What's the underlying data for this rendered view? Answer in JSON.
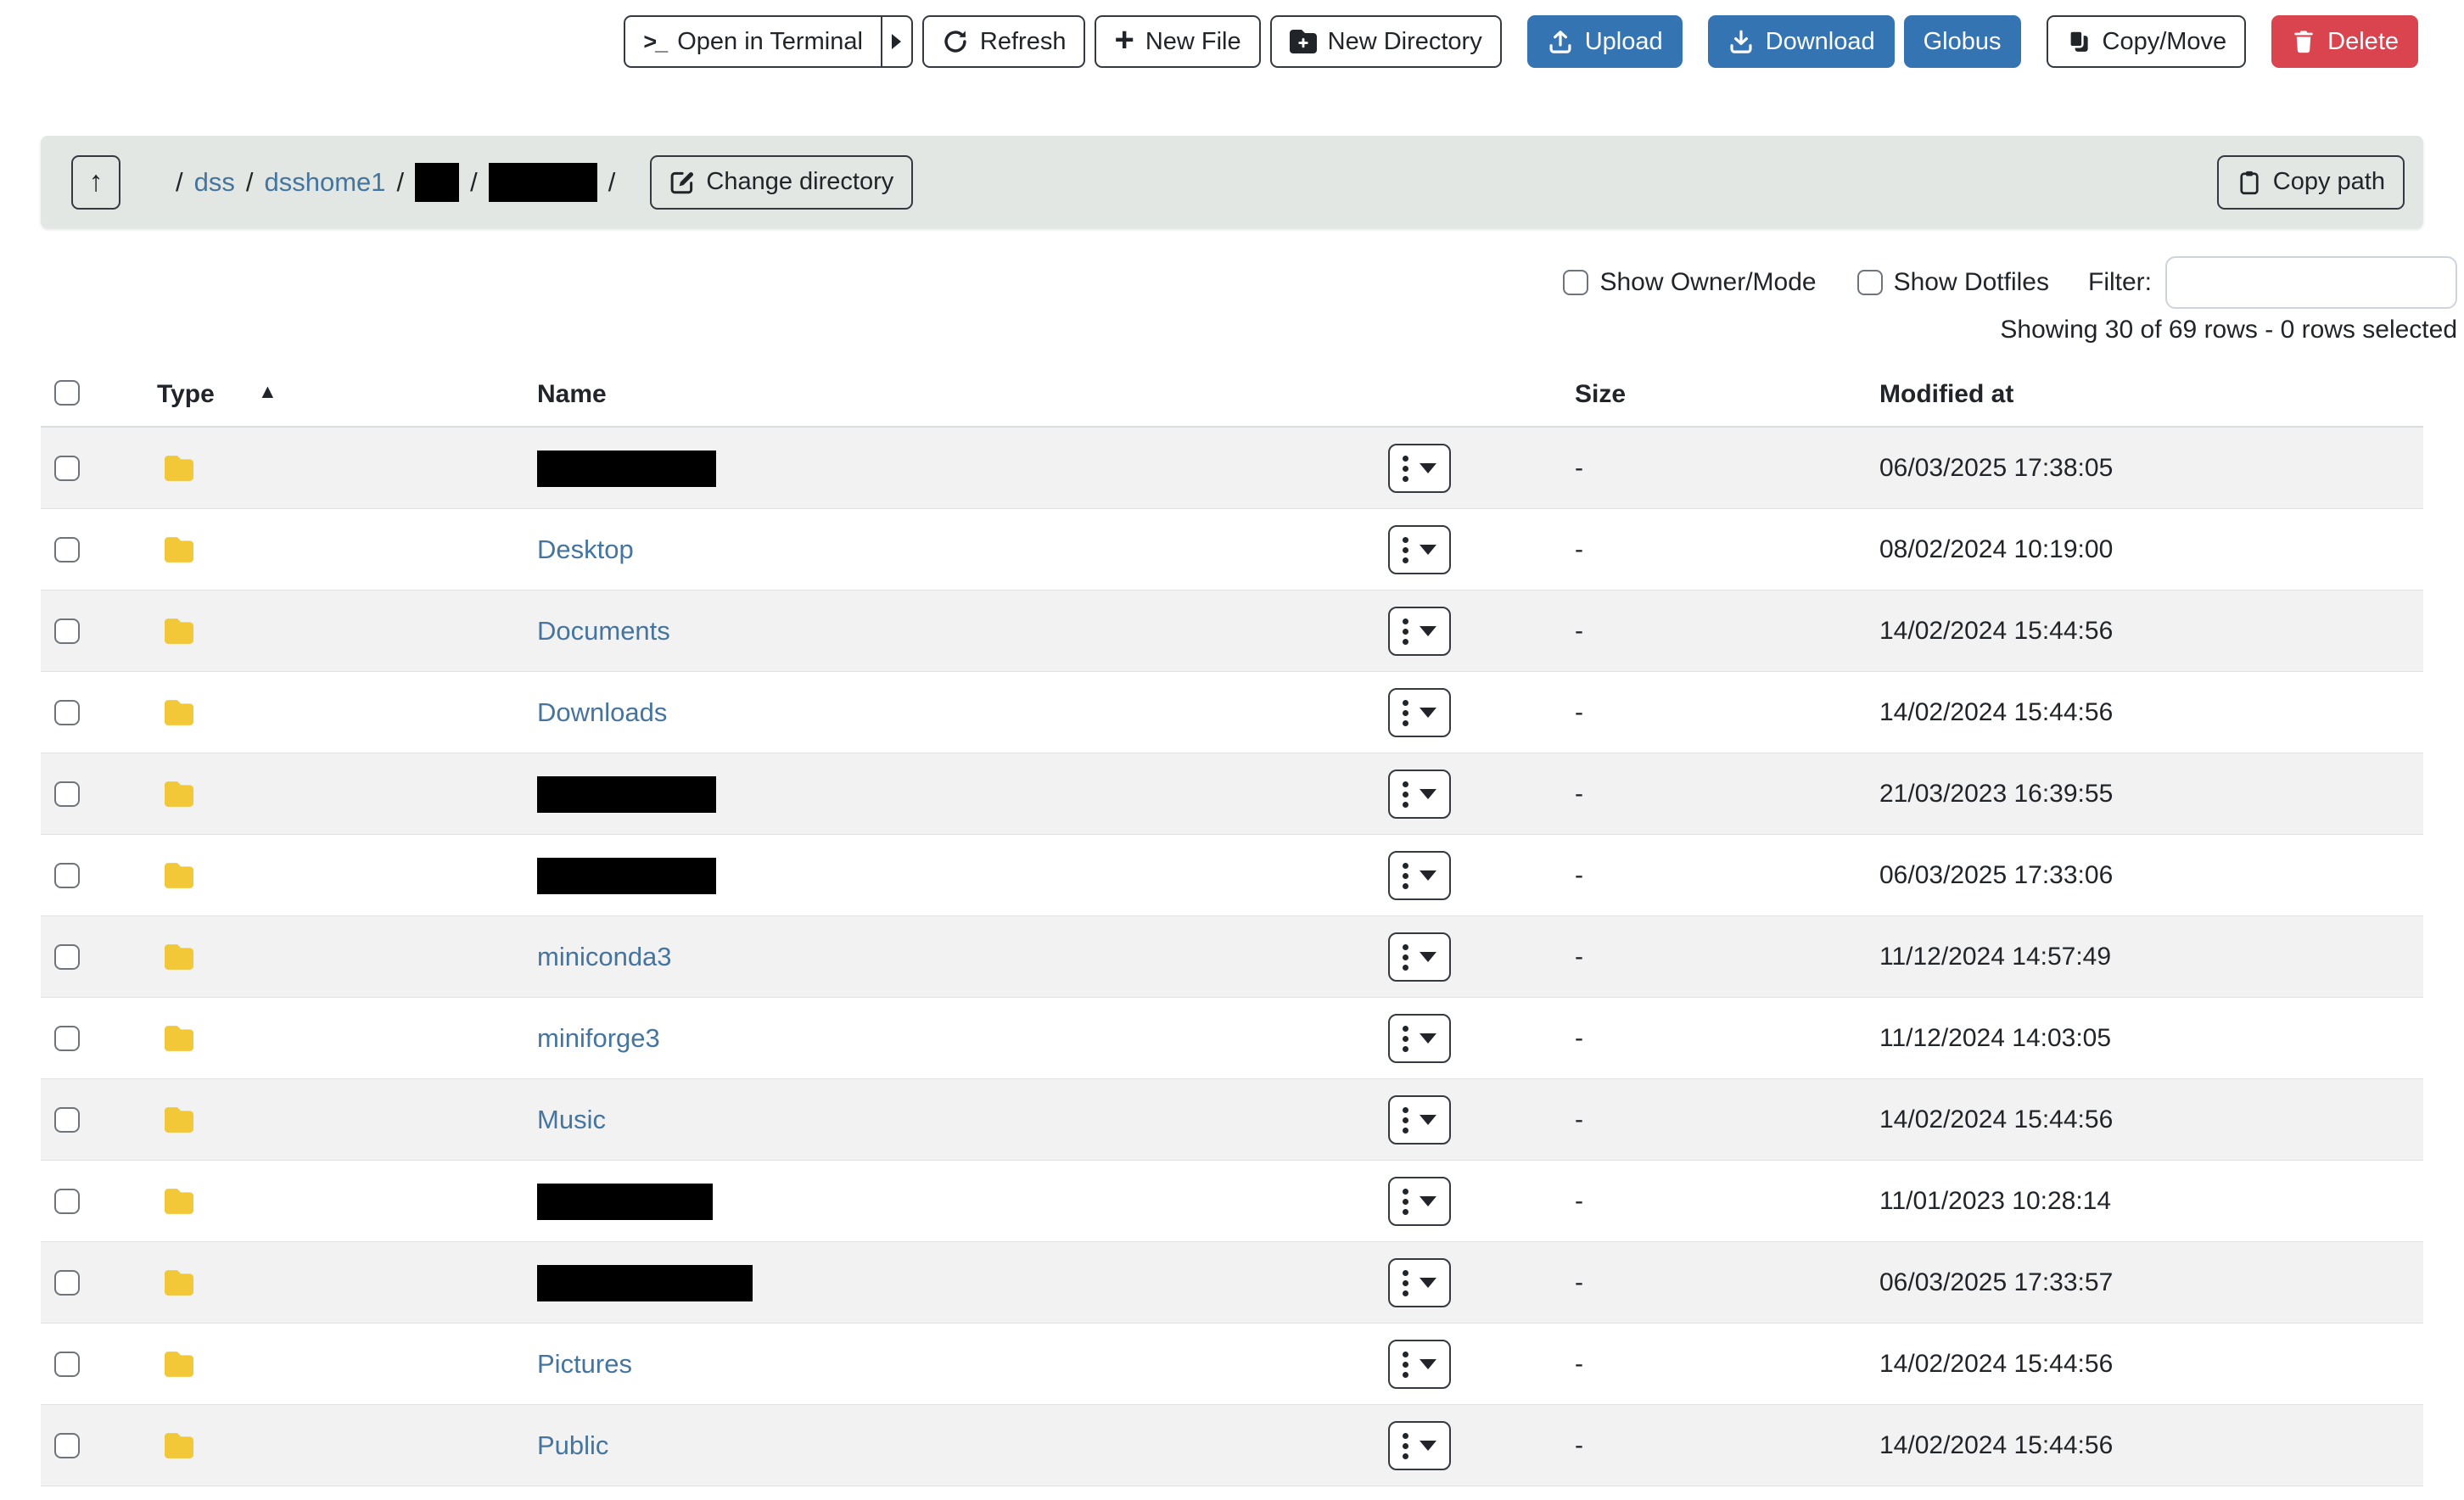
{
  "toolbar": {
    "open_in_terminal": "Open in Terminal",
    "refresh": "Refresh",
    "new_file": "New File",
    "new_directory": "New Directory",
    "upload": "Upload",
    "download": "Download",
    "globus": "Globus",
    "copy_move": "Copy/Move",
    "delete": "Delete"
  },
  "breadcrumb_bar": {
    "up_icon": "↑",
    "segments": [
      {
        "type": "link",
        "label": "dss"
      },
      {
        "type": "link",
        "label": "dsshome1"
      },
      {
        "type": "redacted",
        "width": 52
      },
      {
        "type": "redacted",
        "width": 128
      }
    ],
    "separator": "/",
    "change_directory": "Change directory",
    "copy_path": "Copy path"
  },
  "filters": {
    "show_owner_mode": "Show Owner/Mode",
    "show_dotfiles": "Show Dotfiles",
    "filter_label": "Filter:",
    "filter_value": ""
  },
  "status": {
    "showing": "Showing 30 of 69 rows - 0 rows selected"
  },
  "table": {
    "headers": {
      "type": "Type",
      "name": "Name",
      "size": "Size",
      "modified": "Modified at"
    },
    "sort_icon": "▲",
    "rows": [
      {
        "redacted": true,
        "redact_width": 211,
        "size": "-",
        "modified": "06/03/2025 17:38:05"
      },
      {
        "name": "Desktop",
        "size": "-",
        "modified": "08/02/2024 10:19:00"
      },
      {
        "name": "Documents",
        "size": "-",
        "modified": "14/02/2024 15:44:56"
      },
      {
        "name": "Downloads",
        "size": "-",
        "modified": "14/02/2024 15:44:56"
      },
      {
        "redacted": true,
        "redact_width": 211,
        "size": "-",
        "modified": "21/03/2023 16:39:55"
      },
      {
        "redacted": true,
        "redact_width": 211,
        "size": "-",
        "modified": "06/03/2025 17:33:06"
      },
      {
        "name": "miniconda3",
        "size": "-",
        "modified": "11/12/2024 14:57:49"
      },
      {
        "name": "miniforge3",
        "size": "-",
        "modified": "11/12/2024 14:03:05"
      },
      {
        "name": "Music",
        "size": "-",
        "modified": "14/02/2024 15:44:56"
      },
      {
        "redacted": true,
        "redact_width": 207,
        "size": "-",
        "modified": "11/01/2023 10:28:14"
      },
      {
        "redacted": true,
        "redact_width": 254,
        "size": "-",
        "modified": "06/03/2025 17:33:57"
      },
      {
        "name": "Pictures",
        "size": "-",
        "modified": "14/02/2024 15:44:56"
      },
      {
        "name": "Public",
        "size": "-",
        "modified": "14/02/2024 15:44:56"
      }
    ]
  },
  "colors": {
    "primary_button": "#3474b2",
    "danger_button": "#d9444f",
    "link": "#45759e",
    "folder_icon": "#f2c738",
    "breadcrumb_bg": "#e2e7e3",
    "row_stripe": "#f2f2f2"
  }
}
